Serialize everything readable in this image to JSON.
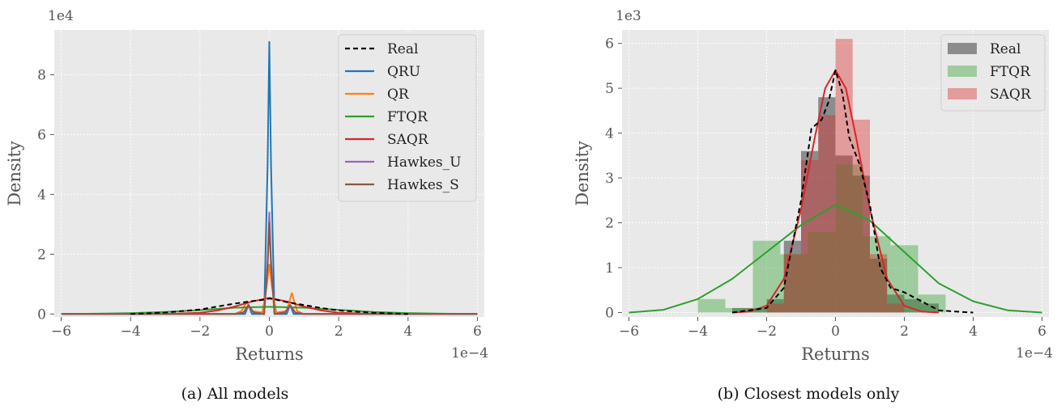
{
  "chart_data": [
    {
      "type": "line",
      "caption": "(a) All models",
      "xlabel": "Returns",
      "ylabel": "Density",
      "x_multiplier_label": "1e−4",
      "y_multiplier_label": "1e4",
      "xlim": [
        -6.2,
        6.2
      ],
      "ylim": [
        -0.1,
        9.5
      ],
      "xticks": [
        -6,
        -4,
        -2,
        0,
        2,
        4,
        6
      ],
      "xtick_labels": [
        "−6",
        "−4",
        "−2",
        "0",
        "2",
        "4",
        "6"
      ],
      "yticks": [
        0,
        2,
        4,
        6,
        8
      ],
      "ytick_labels": [
        "0",
        "2",
        "4",
        "6",
        "8"
      ],
      "grid": true,
      "legend_position": "top-right",
      "series": [
        {
          "name": "Real",
          "color": "#000000",
          "dash": true,
          "x": [
            -4.0,
            -3.0,
            -2.0,
            -1.5,
            -1.0,
            -0.5,
            -0.2,
            0.0,
            0.2,
            0.5,
            1.0,
            1.5,
            2.0,
            3.0,
            4.0
          ],
          "y": [
            0.0,
            0.05,
            0.15,
            0.25,
            0.35,
            0.43,
            0.47,
            0.52,
            0.48,
            0.4,
            0.3,
            0.2,
            0.12,
            0.04,
            0.0
          ]
        },
        {
          "name": "QRU",
          "color": "#1f77b4",
          "x": [
            -6.0,
            -1.0,
            -0.7,
            -0.6,
            -0.5,
            -0.15,
            -0.05,
            0.0,
            0.05,
            0.15,
            0.5,
            0.6,
            0.7,
            1.0,
            6.0
          ],
          "y": [
            0.0,
            0.0,
            0.0,
            0.3,
            0.0,
            0.0,
            5.0,
            9.1,
            5.0,
            0.0,
            0.0,
            0.3,
            0.0,
            0.0,
            0.0
          ]
        },
        {
          "name": "QR",
          "color": "#ff7f0e",
          "x": [
            -6.0,
            -1.0,
            -0.8,
            -0.65,
            -0.5,
            -0.2,
            -0.08,
            0.0,
            0.08,
            0.2,
            0.5,
            0.65,
            0.8,
            1.0,
            6.0
          ],
          "y": [
            0.0,
            0.0,
            0.1,
            0.4,
            0.1,
            0.05,
            0.9,
            1.65,
            0.9,
            0.05,
            0.1,
            0.7,
            0.1,
            0.0,
            0.0
          ]
        },
        {
          "name": "FTQR",
          "color": "#2ca02c",
          "x": [
            -6.0,
            -5.0,
            -4.0,
            -3.0,
            -2.0,
            -1.0,
            0.0,
            1.0,
            2.0,
            3.0,
            4.0,
            5.0,
            6.0
          ],
          "y": [
            0.0,
            0.01,
            0.03,
            0.07,
            0.13,
            0.21,
            0.24,
            0.21,
            0.14,
            0.07,
            0.03,
            0.01,
            0.0
          ]
        },
        {
          "name": "SAQR",
          "color": "#d62728",
          "x": [
            -3.0,
            -2.0,
            -1.5,
            -1.0,
            -0.5,
            0.0,
            0.5,
            1.0,
            1.5,
            2.0,
            3.0
          ],
          "y": [
            0.0,
            0.04,
            0.12,
            0.25,
            0.42,
            0.54,
            0.42,
            0.25,
            0.12,
            0.04,
            0.0
          ]
        },
        {
          "name": "Hawkes_U",
          "color": "#9467bd",
          "x": [
            -6.0,
            -1.0,
            -0.75,
            -0.6,
            -0.45,
            -0.15,
            -0.05,
            0.0,
            0.05,
            0.15,
            0.45,
            0.6,
            0.75,
            1.0,
            6.0
          ],
          "y": [
            0.0,
            0.0,
            0.05,
            0.25,
            0.05,
            0.0,
            1.8,
            3.4,
            1.8,
            0.0,
            0.05,
            0.25,
            0.05,
            0.0,
            0.0
          ]
        },
        {
          "name": "Hawkes_S",
          "color": "#8c564b",
          "x": [
            -6.0,
            -1.0,
            -0.75,
            -0.6,
            -0.45,
            -0.15,
            -0.05,
            0.0,
            0.05,
            0.15,
            0.45,
            0.6,
            0.75,
            1.0,
            6.0
          ],
          "y": [
            0.0,
            0.0,
            0.05,
            0.3,
            0.05,
            0.0,
            1.6,
            3.05,
            1.6,
            0.0,
            0.05,
            0.3,
            0.05,
            0.0,
            0.0
          ]
        }
      ]
    },
    {
      "type": "histogram",
      "caption": "(b) Closest models only",
      "xlabel": "Returns",
      "ylabel": "Density",
      "x_multiplier_label": "1e−4",
      "y_multiplier_label": "1e3",
      "xlim": [
        -6.2,
        6.2
      ],
      "ylim": [
        -0.1,
        6.3
      ],
      "xticks": [
        -6,
        -4,
        -2,
        0,
        2,
        4,
        6
      ],
      "xtick_labels": [
        "−6",
        "−4",
        "−2",
        "0",
        "2",
        "4",
        "6"
      ],
      "yticks": [
        0,
        1,
        2,
        3,
        4,
        5,
        6
      ],
      "ytick_labels": [
        "0",
        "1",
        "2",
        "3",
        "4",
        "5",
        "6"
      ],
      "grid": true,
      "legend_position": "top-right",
      "histograms": [
        {
          "name": "Real",
          "color": "#000000",
          "opacity": 0.4,
          "bin_width": 0.5,
          "bin_starts": [
            -3.0,
            -2.5,
            -2.0,
            -1.5,
            -1.0,
            -0.5,
            0.0,
            0.5,
            1.0,
            1.5,
            2.0,
            2.5
          ],
          "values": [
            0.1,
            0.1,
            0.3,
            1.6,
            3.6,
            4.8,
            3.5,
            3.05,
            1.2,
            0.4,
            0.3,
            0.2
          ]
        },
        {
          "name": "FTQR",
          "color": "#2ca02c",
          "opacity": 0.4,
          "bin_width": 0.8,
          "bin_starts": [
            -4.0,
            -3.2,
            -2.4,
            -1.6,
            -0.8,
            0.0,
            0.8,
            1.6,
            2.4
          ],
          "values": [
            0.3,
            0.1,
            1.6,
            1.3,
            1.8,
            3.3,
            1.7,
            1.5,
            0.4
          ]
        },
        {
          "name": "SAQR",
          "color": "#d62728",
          "opacity": 0.4,
          "bin_width": 0.5,
          "bin_starts": [
            -2.0,
            -1.5,
            -1.0,
            -0.5,
            0.0,
            0.5,
            1.0,
            1.5
          ],
          "values": [
            0.2,
            1.3,
            3.4,
            4.4,
            6.1,
            4.3,
            1.3,
            0.2
          ]
        }
      ],
      "kde_lines": [
        {
          "name": "Real",
          "color": "#000000",
          "dash": true,
          "x": [
            -3.0,
            -2.5,
            -2.0,
            -1.5,
            -1.0,
            -0.7,
            -0.4,
            -0.2,
            0.0,
            0.2,
            0.4,
            0.7,
            1.0,
            1.3,
            1.6,
            2.0,
            2.5,
            3.0,
            3.5,
            4.0
          ],
          "y": [
            0.0,
            0.05,
            0.1,
            0.55,
            2.5,
            4.1,
            4.3,
            4.7,
            5.4,
            4.9,
            3.9,
            3.3,
            2.4,
            1.0,
            0.55,
            0.45,
            0.25,
            0.05,
            0.02,
            0.0
          ]
        },
        {
          "name": "FTQR",
          "color": "#2ca02c",
          "x": [
            -6.0,
            -5.0,
            -4.0,
            -3.0,
            -2.0,
            -1.0,
            0.0,
            1.0,
            2.0,
            3.0,
            4.0,
            5.0,
            6.0
          ],
          "y": [
            0.0,
            0.06,
            0.3,
            0.75,
            1.35,
            1.95,
            2.4,
            2.05,
            1.35,
            0.65,
            0.25,
            0.05,
            0.0
          ]
        },
        {
          "name": "SAQR",
          "color": "#d62728",
          "x": [
            -3.0,
            -2.5,
            -2.0,
            -1.5,
            -1.0,
            -0.6,
            -0.3,
            0.0,
            0.3,
            0.6,
            1.0,
            1.5,
            2.0,
            2.5,
            3.0
          ],
          "y": [
            0.0,
            0.02,
            0.15,
            0.75,
            2.3,
            3.9,
            5.0,
            5.4,
            5.0,
            3.9,
            2.3,
            0.75,
            0.15,
            0.02,
            0.0
          ]
        }
      ]
    }
  ]
}
